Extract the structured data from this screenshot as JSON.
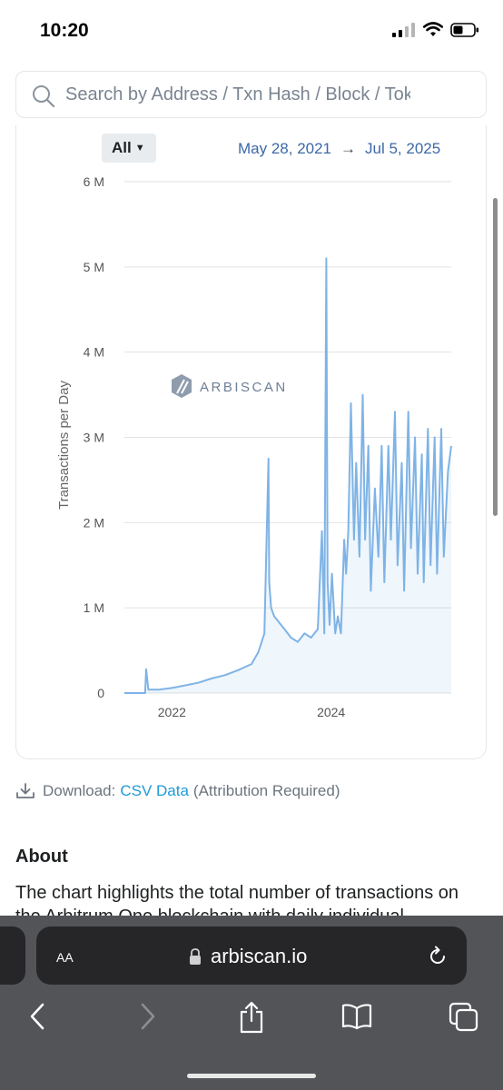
{
  "status_bar": {
    "time": "10:20"
  },
  "search": {
    "placeholder": "Search by Address / Txn Hash / Block / Token / Domain Name"
  },
  "chart_controls": {
    "range_label": "All",
    "date_start": "May 28, 2021",
    "arrow": "→",
    "date_end": "Jul 5, 2025"
  },
  "chart_data": {
    "type": "area",
    "title": "",
    "ylabel": "Transactions per Day",
    "xlabel": "",
    "y_tick_labels": [
      "0",
      "1 M",
      "2 M",
      "3 M",
      "4 M",
      "5 M",
      "6 M"
    ],
    "x_tick_labels": [
      "2022",
      "2024"
    ],
    "xlim": [
      "2021-05-28",
      "2025-07-05"
    ],
    "ylim": [
      0,
      6000000
    ],
    "watermark": "ARBISCAN",
    "grid": true,
    "series_color": "#7fb3e6",
    "x": [
      "2021-05-28",
      "2021-08-31",
      "2021-09-05",
      "2021-09-15",
      "2021-11-01",
      "2022-01-01",
      "2022-03-01",
      "2022-05-01",
      "2022-07-01",
      "2022-09-01",
      "2022-11-01",
      "2023-01-01",
      "2023-02-01",
      "2023-03-01",
      "2023-03-20",
      "2023-03-23",
      "2023-04-01",
      "2023-04-15",
      "2023-05-01",
      "2023-06-01",
      "2023-07-01",
      "2023-08-01",
      "2023-09-01",
      "2023-10-01",
      "2023-11-01",
      "2023-11-20",
      "2023-12-01",
      "2023-12-10",
      "2023-12-16",
      "2023-12-25",
      "2024-01-05",
      "2024-01-20",
      "2024-02-01",
      "2024-02-15",
      "2024-03-01",
      "2024-03-10",
      "2024-03-20",
      "2024-04-01",
      "2024-04-15",
      "2024-04-25",
      "2024-05-10",
      "2024-05-25",
      "2024-06-05",
      "2024-06-20",
      "2024-07-01",
      "2024-07-20",
      "2024-08-05",
      "2024-08-20",
      "2024-09-01",
      "2024-09-20",
      "2024-10-01",
      "2024-10-20",
      "2024-11-01",
      "2024-11-20",
      "2024-12-01",
      "2024-12-20",
      "2025-01-01",
      "2025-01-20",
      "2025-02-01",
      "2025-02-20",
      "2025-03-01",
      "2025-03-20",
      "2025-04-01",
      "2025-04-20",
      "2025-05-01",
      "2025-05-20",
      "2025-06-01",
      "2025-06-20",
      "2025-07-05"
    ],
    "values": [
      0,
      0,
      280000,
      40000,
      40000,
      60000,
      90000,
      120000,
      170000,
      210000,
      270000,
      340000,
      480000,
      700000,
      2750000,
      1300000,
      1000000,
      900000,
      850000,
      750000,
      650000,
      600000,
      700000,
      650000,
      750000,
      1900000,
      700000,
      5100000,
      1300000,
      800000,
      1400000,
      700000,
      900000,
      700000,
      1800000,
      1400000,
      1900000,
      3400000,
      1800000,
      2700000,
      1600000,
      3500000,
      1800000,
      2900000,
      1200000,
      2400000,
      1600000,
      2900000,
      1300000,
      2900000,
      1800000,
      3300000,
      1500000,
      2700000,
      1200000,
      3300000,
      1700000,
      3000000,
      1400000,
      2800000,
      1300000,
      3100000,
      1500000,
      3000000,
      1400000,
      3100000,
      1600000,
      2600000,
      2900000
    ]
  },
  "download": {
    "label": "Download:",
    "link": "CSV Data",
    "note": "(Attribution Required)"
  },
  "about": {
    "title": "About",
    "text": "The chart highlights the total number of transactions on the Arbitrum One blockchain with daily individual"
  },
  "browser": {
    "text_size_label": "AA",
    "url": "arbiscan.io"
  }
}
